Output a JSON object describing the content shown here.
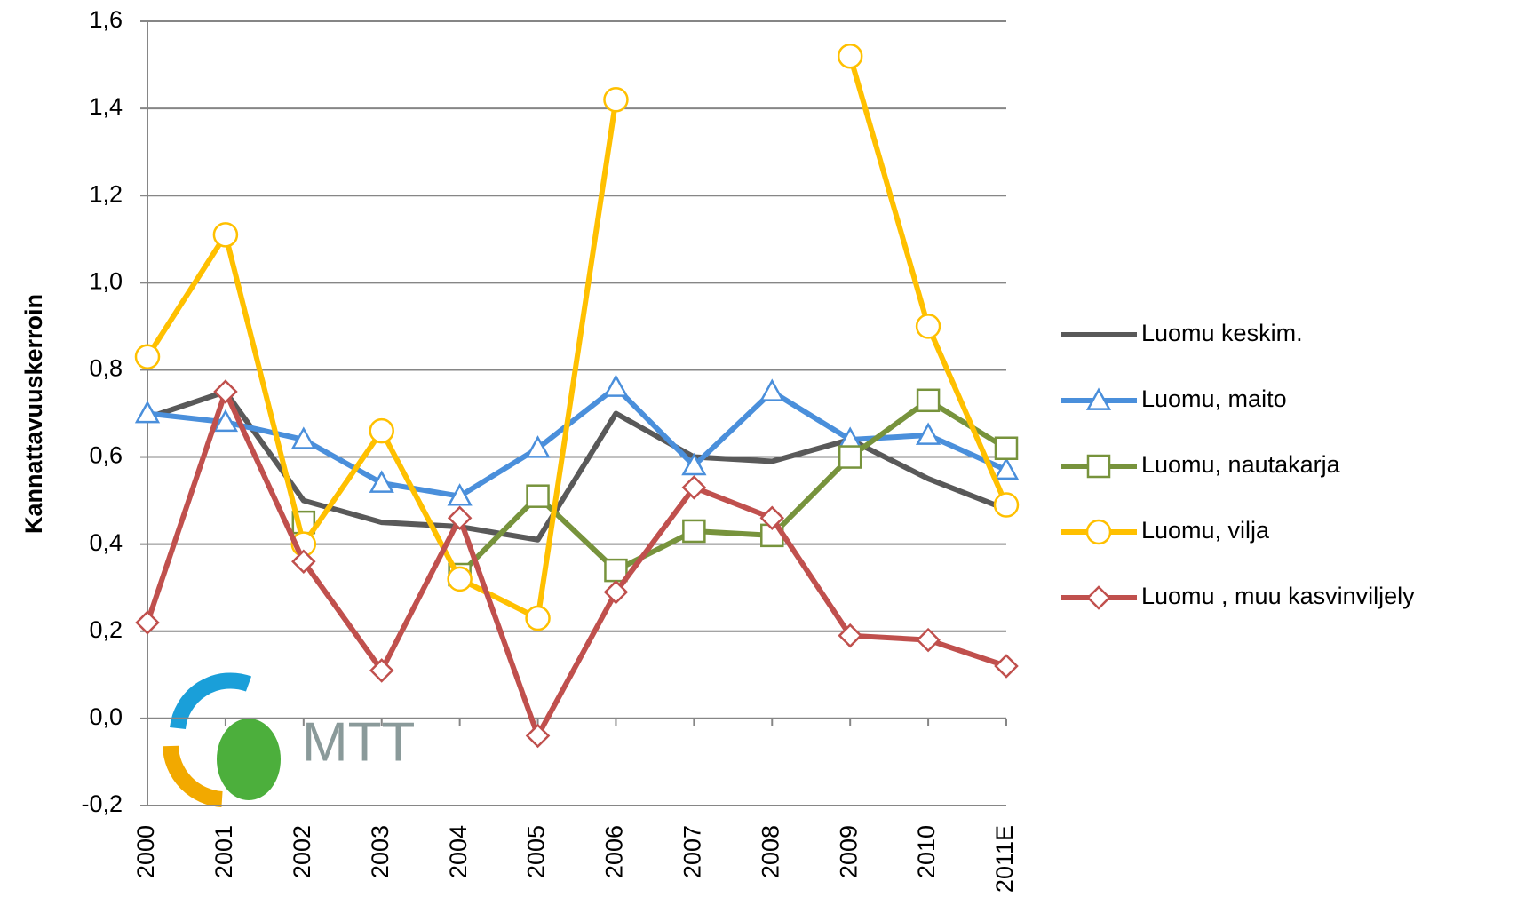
{
  "chart_data": {
    "type": "line",
    "y_label": "Kannattavuuskerroin",
    "logo_text": "MTT",
    "categories": [
      "2000",
      "2001",
      "2002",
      "2003",
      "2004",
      "2005",
      "2006",
      "2007",
      "2008",
      "2009",
      "2010",
      "2011E"
    ],
    "series": [
      {
        "name": "Luomu keskim.",
        "color": "#595959",
        "marker": "none",
        "values": [
          0.69,
          0.75,
          0.5,
          0.45,
          0.44,
          0.41,
          0.7,
          0.6,
          0.59,
          0.64,
          0.55,
          0.48
        ]
      },
      {
        "name": "Luomu, maito",
        "color": "#4a8fdb",
        "marker": "triangle",
        "values": [
          0.7,
          0.68,
          0.64,
          0.54,
          0.51,
          0.62,
          0.76,
          0.58,
          0.75,
          0.64,
          0.65,
          0.57
        ]
      },
      {
        "name": "Luomu, nautakarja",
        "color": "#77933c",
        "marker": "square",
        "values": [
          null,
          null,
          0.45,
          null,
          0.33,
          0.51,
          0.34,
          0.43,
          0.42,
          0.6,
          0.73,
          0.62
        ]
      },
      {
        "name": "Luomu, vilja",
        "color": "#ffc000",
        "marker": "circle",
        "values": [
          0.83,
          1.11,
          0.4,
          0.66,
          0.32,
          0.23,
          1.42,
          null,
          null,
          1.52,
          0.9,
          0.49
        ]
      },
      {
        "name": "Luomu , muu kasvinviljely",
        "color": "#c0504d",
        "marker": "diamond",
        "values": [
          0.22,
          0.75,
          0.36,
          0.11,
          0.46,
          -0.04,
          0.29,
          0.53,
          0.46,
          0.19,
          0.18,
          0.12
        ]
      }
    ],
    "ylim": [
      -0.2,
      1.6
    ],
    "yticks": [
      {
        "value": -0.2,
        "label": "-0,2"
      },
      {
        "value": 0,
        "label": "0,0"
      },
      {
        "value": 0.2,
        "label": "0,2"
      },
      {
        "value": 0.4,
        "label": "0,4"
      },
      {
        "value": 0.6,
        "label": "0,6"
      },
      {
        "value": 0.8,
        "label": "0,8"
      },
      {
        "value": 1.0,
        "label": "1,0"
      },
      {
        "value": 1.2,
        "label": "1,2"
      },
      {
        "value": 1.4,
        "label": "1,4"
      },
      {
        "value": 1.6,
        "label": "1,6"
      }
    ],
    "grid": true,
    "legend": "right"
  }
}
